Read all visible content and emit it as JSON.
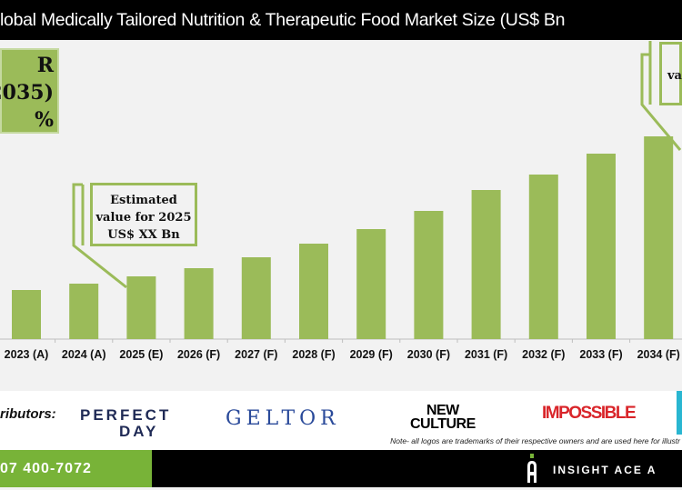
{
  "title": "lobal Medically Tailored Nutrition & Therapeutic Food Market Size (US$ Bn",
  "cagr_box": {
    "line1": "R",
    "line2": "2035)",
    "line3": "%"
  },
  "callout_2025": {
    "line1": "Estimated",
    "line2": "value for 2025",
    "line3": "US$ XX Bn"
  },
  "callout_right": {
    "text": "va"
  },
  "colors": {
    "bar": "#9bbb59",
    "accent_green": "#78b338",
    "title_bg": "#000000"
  },
  "chart_data": {
    "type": "bar",
    "title": "lobal Medically Tailored Nutrition & Therapeutic Food Market Size (US$ Bn",
    "categories": [
      "2023 (A)",
      "2024 (A)",
      "2025 (E)",
      "2026 (F)",
      "2027 (F)",
      "2028 (F)",
      "2029 (F)",
      "2030 (F)",
      "2031 (F)",
      "2032 (F)",
      "2033 (F)",
      "2034 (F)"
    ],
    "values": [
      54,
      61,
      69,
      78,
      90,
      105,
      121,
      141,
      164,
      181,
      204,
      223
    ],
    "value_note": "relative bar heights; no y-axis values printed",
    "xlabel": "",
    "ylabel": "",
    "grid": false,
    "bar_color": "#9bbb59"
  },
  "footer_logos": {
    "label": "ributors:",
    "perfect_day_1": "PERFECT",
    "perfect_day_2": "DAY",
    "geltor": "GELTOR",
    "new_culture_1": "NEW",
    "new_culture_2": "CULTURE",
    "impossible": "IMPOSSIBLE",
    "note": "Note- all logos are trademarks of their respective owners and are used here for illustr"
  },
  "footer": {
    "phone": "07 400-7072",
    "brand": "INSIGHT ACE A"
  }
}
